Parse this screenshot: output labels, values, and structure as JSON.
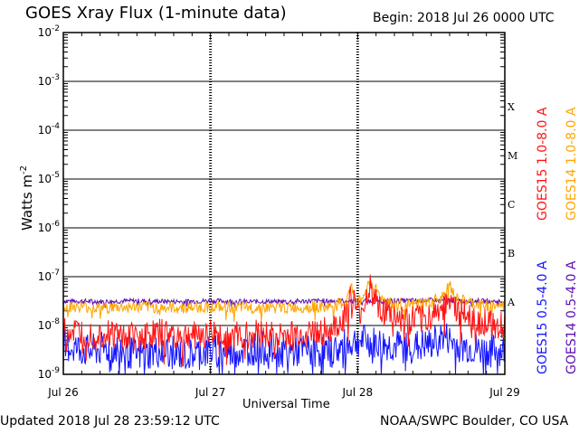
{
  "header": {
    "title": "GOES Xray Flux (1-minute data)",
    "begin": "Begin:  2018 Jul 26 0000 UTC"
  },
  "footer": {
    "updated": "Updated 2018 Jul 28 23:59:12 UTC",
    "credit": "NOAA/SWPC Boulder, CO USA"
  },
  "chart_data": {
    "type": "line",
    "xlabel": "Universal Time",
    "ylabel": "Watts m",
    "ylabel_sup": "-2",
    "y_scale": "log",
    "ylim": [
      1e-09,
      0.01
    ],
    "xlim_hours": [
      0,
      72
    ],
    "x_ticks": [
      "Jul 26",
      "Jul 27",
      "Jul 28",
      "Jul 29"
    ],
    "y_ticks": [
      {
        "base": "10",
        "exp": "-9",
        "value": 1e-09
      },
      {
        "base": "10",
        "exp": "-8",
        "value": 1e-08
      },
      {
        "base": "10",
        "exp": "-7",
        "value": 1e-07
      },
      {
        "base": "10",
        "exp": "-6",
        "value": 1e-06
      },
      {
        "base": "10",
        "exp": "-5",
        "value": 1e-05
      },
      {
        "base": "10",
        "exp": "-4",
        "value": 0.0001
      },
      {
        "base": "10",
        "exp": "-3",
        "value": 0.001
      },
      {
        "base": "10",
        "exp": "-2",
        "value": 0.01
      }
    ],
    "flare_classes": [
      {
        "label": "A",
        "value": 3e-08
      },
      {
        "label": "B",
        "value": 3e-07
      },
      {
        "label": "C",
        "value": 3e-06
      },
      {
        "label": "M",
        "value": 3e-05
      },
      {
        "label": "X",
        "value": 0.0003
      }
    ],
    "grid": true,
    "legend_placement": "right",
    "series": [
      {
        "name": "GOES14 0.5-4.0 A",
        "color": "#5b0fb4",
        "t": [
          0,
          6,
          12,
          18,
          24,
          30,
          36,
          42,
          48,
          54,
          60,
          66,
          72
        ],
        "values": [
          3.2e-08,
          3.1e-08,
          3.2e-08,
          3.1e-08,
          3.2e-08,
          3.1e-08,
          3.1e-08,
          3.2e-08,
          3.2e-08,
          3.2e-08,
          3.3e-08,
          3.2e-08,
          3.1e-08
        ]
      },
      {
        "name": "GOES15 0.5-4.0 A",
        "color": "#1414ff",
        "t": [
          0,
          4,
          8,
          12,
          16,
          20,
          24,
          28,
          32,
          36,
          40,
          44,
          48,
          50,
          52,
          56,
          60,
          62,
          64,
          68,
          72
        ],
        "values": [
          4e-09,
          3e-09,
          3.5e-09,
          2.5e-09,
          3e-09,
          2.5e-09,
          3e-09,
          3e-09,
          3.5e-09,
          3e-09,
          3e-09,
          3e-09,
          5e-09,
          4.5e-09,
          4e-09,
          3.5e-09,
          4e-09,
          6e-09,
          4e-09,
          3e-09,
          3e-09
        ]
      },
      {
        "name": "GOES14 1.0-8.0 A",
        "color": "#ffa500",
        "t": [
          0,
          6,
          12,
          18,
          24,
          30,
          36,
          40,
          44,
          46,
          47,
          48,
          49,
          50,
          52,
          54,
          56,
          60,
          62,
          63,
          64,
          66,
          68,
          72
        ],
        "values": [
          2.5e-08,
          2.3e-08,
          2.4e-08,
          2.3e-08,
          2.4e-08,
          2.3e-08,
          2.3e-08,
          2.4e-08,
          2.5e-08,
          3e-08,
          6e-08,
          3e-08,
          4e-08,
          8.5e-08,
          3.5e-08,
          2.8e-08,
          2.5e-08,
          3e-08,
          4e-08,
          7e-08,
          3.5e-08,
          3e-08,
          2.6e-08,
          2.5e-08
        ]
      },
      {
        "name": "GOES15 1.0-8.0 A",
        "color": "#ff1414",
        "t": [
          0,
          4,
          8,
          12,
          16,
          20,
          24,
          28,
          32,
          36,
          40,
          44,
          46,
          47,
          48,
          49,
          50,
          52,
          54,
          56,
          60,
          62,
          63,
          64,
          66,
          68,
          72
        ],
        "values": [
          8e-09,
          7e-09,
          7e-09,
          6e-09,
          7e-09,
          6e-09,
          7e-09,
          6e-09,
          7e-09,
          6e-09,
          7e-09,
          8e-09,
          1.5e-08,
          4.5e-08,
          1.5e-08,
          2.5e-08,
          6e-08,
          2e-08,
          1.5e-08,
          1.2e-08,
          1.5e-08,
          2.5e-08,
          5e-08,
          2e-08,
          1.5e-08,
          1.2e-08,
          1e-08
        ]
      }
    ]
  }
}
